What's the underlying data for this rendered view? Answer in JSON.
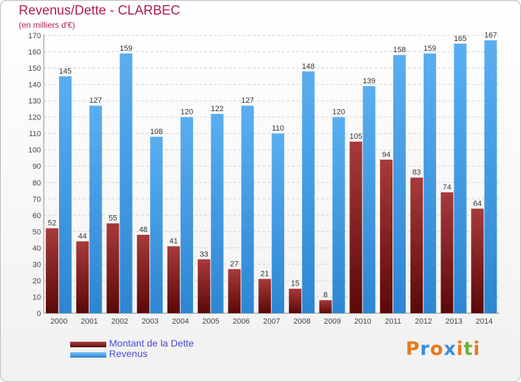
{
  "chart_data": {
    "type": "bar",
    "title": "Revenus/Dette - CLARBEC",
    "subtitle": "(en milliers d'€)",
    "categories": [
      "2000",
      "2001",
      "2002",
      "2003",
      "2004",
      "2005",
      "2006",
      "2007",
      "2008",
      "2009",
      "2010",
      "2011",
      "2012",
      "2013",
      "2014"
    ],
    "series": [
      {
        "name": "Montant de la Dette",
        "color": "#7a1e1e",
        "values": [
          52,
          44,
          55,
          48,
          41,
          33,
          27,
          21,
          15,
          8,
          105,
          94,
          83,
          74,
          64
        ]
      },
      {
        "name": "Revenus",
        "color": "#3d9be0",
        "values": [
          145,
          127,
          159,
          108,
          120,
          122,
          127,
          110,
          148,
          120,
          139,
          158,
          159,
          165,
          167
        ]
      }
    ],
    "ylim": [
      0,
      170
    ],
    "ytick_step": 10,
    "grid": true,
    "legend_position": "bottom-left"
  },
  "branding": {
    "logo_text": "Proxiti",
    "letter_colors": [
      "#e8791e",
      "#3a8fd8",
      "#e8791e",
      "#3a8fd8",
      "#e8791e",
      "#6fb33a",
      "#e8791e"
    ]
  }
}
